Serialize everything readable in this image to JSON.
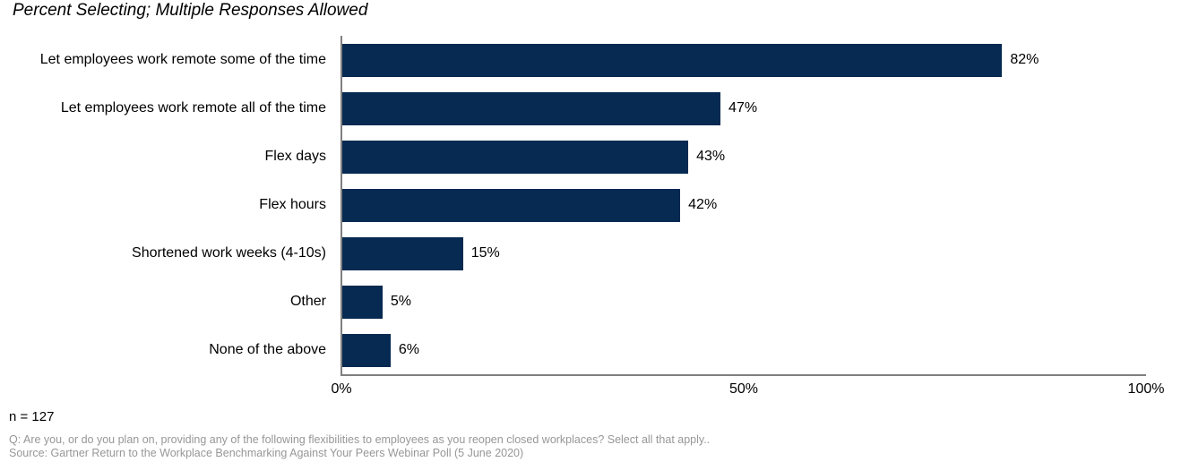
{
  "title": "Percent Selecting; Multiple Responses Allowed",
  "chart_data": {
    "type": "bar",
    "orientation": "horizontal",
    "title": "Percent Selecting; Multiple Responses Allowed",
    "categories": [
      "Let employees work remote some of the time",
      "Let employees work remote all of the time",
      "Flex days",
      "Flex hours",
      "Shortened work weeks (4-10s)",
      "Other",
      "None of the above"
    ],
    "values": [
      82,
      47,
      43,
      42,
      15,
      5,
      6
    ],
    "value_labels": [
      "82%",
      "47%",
      "43%",
      "42%",
      "15%",
      "5%",
      "6%"
    ],
    "xlabel": "",
    "ylabel": "",
    "xlim": [
      0,
      100
    ],
    "x_ticks": [
      "0%",
      "50%",
      "100%"
    ],
    "grid": false,
    "legend": "none",
    "bar_color": "#062a51",
    "axis_color": "#7f7f7f"
  },
  "footer": {
    "sample_size": "n = 127",
    "question": "Q: Are you, or do you plan on, providing any of the following flexibilities to employees as you reopen closed workplaces? Select all that apply..",
    "source": "Source: Gartner Return to the Workplace Benchmarking Against Your Peers Webinar Poll (5 June 2020)"
  }
}
